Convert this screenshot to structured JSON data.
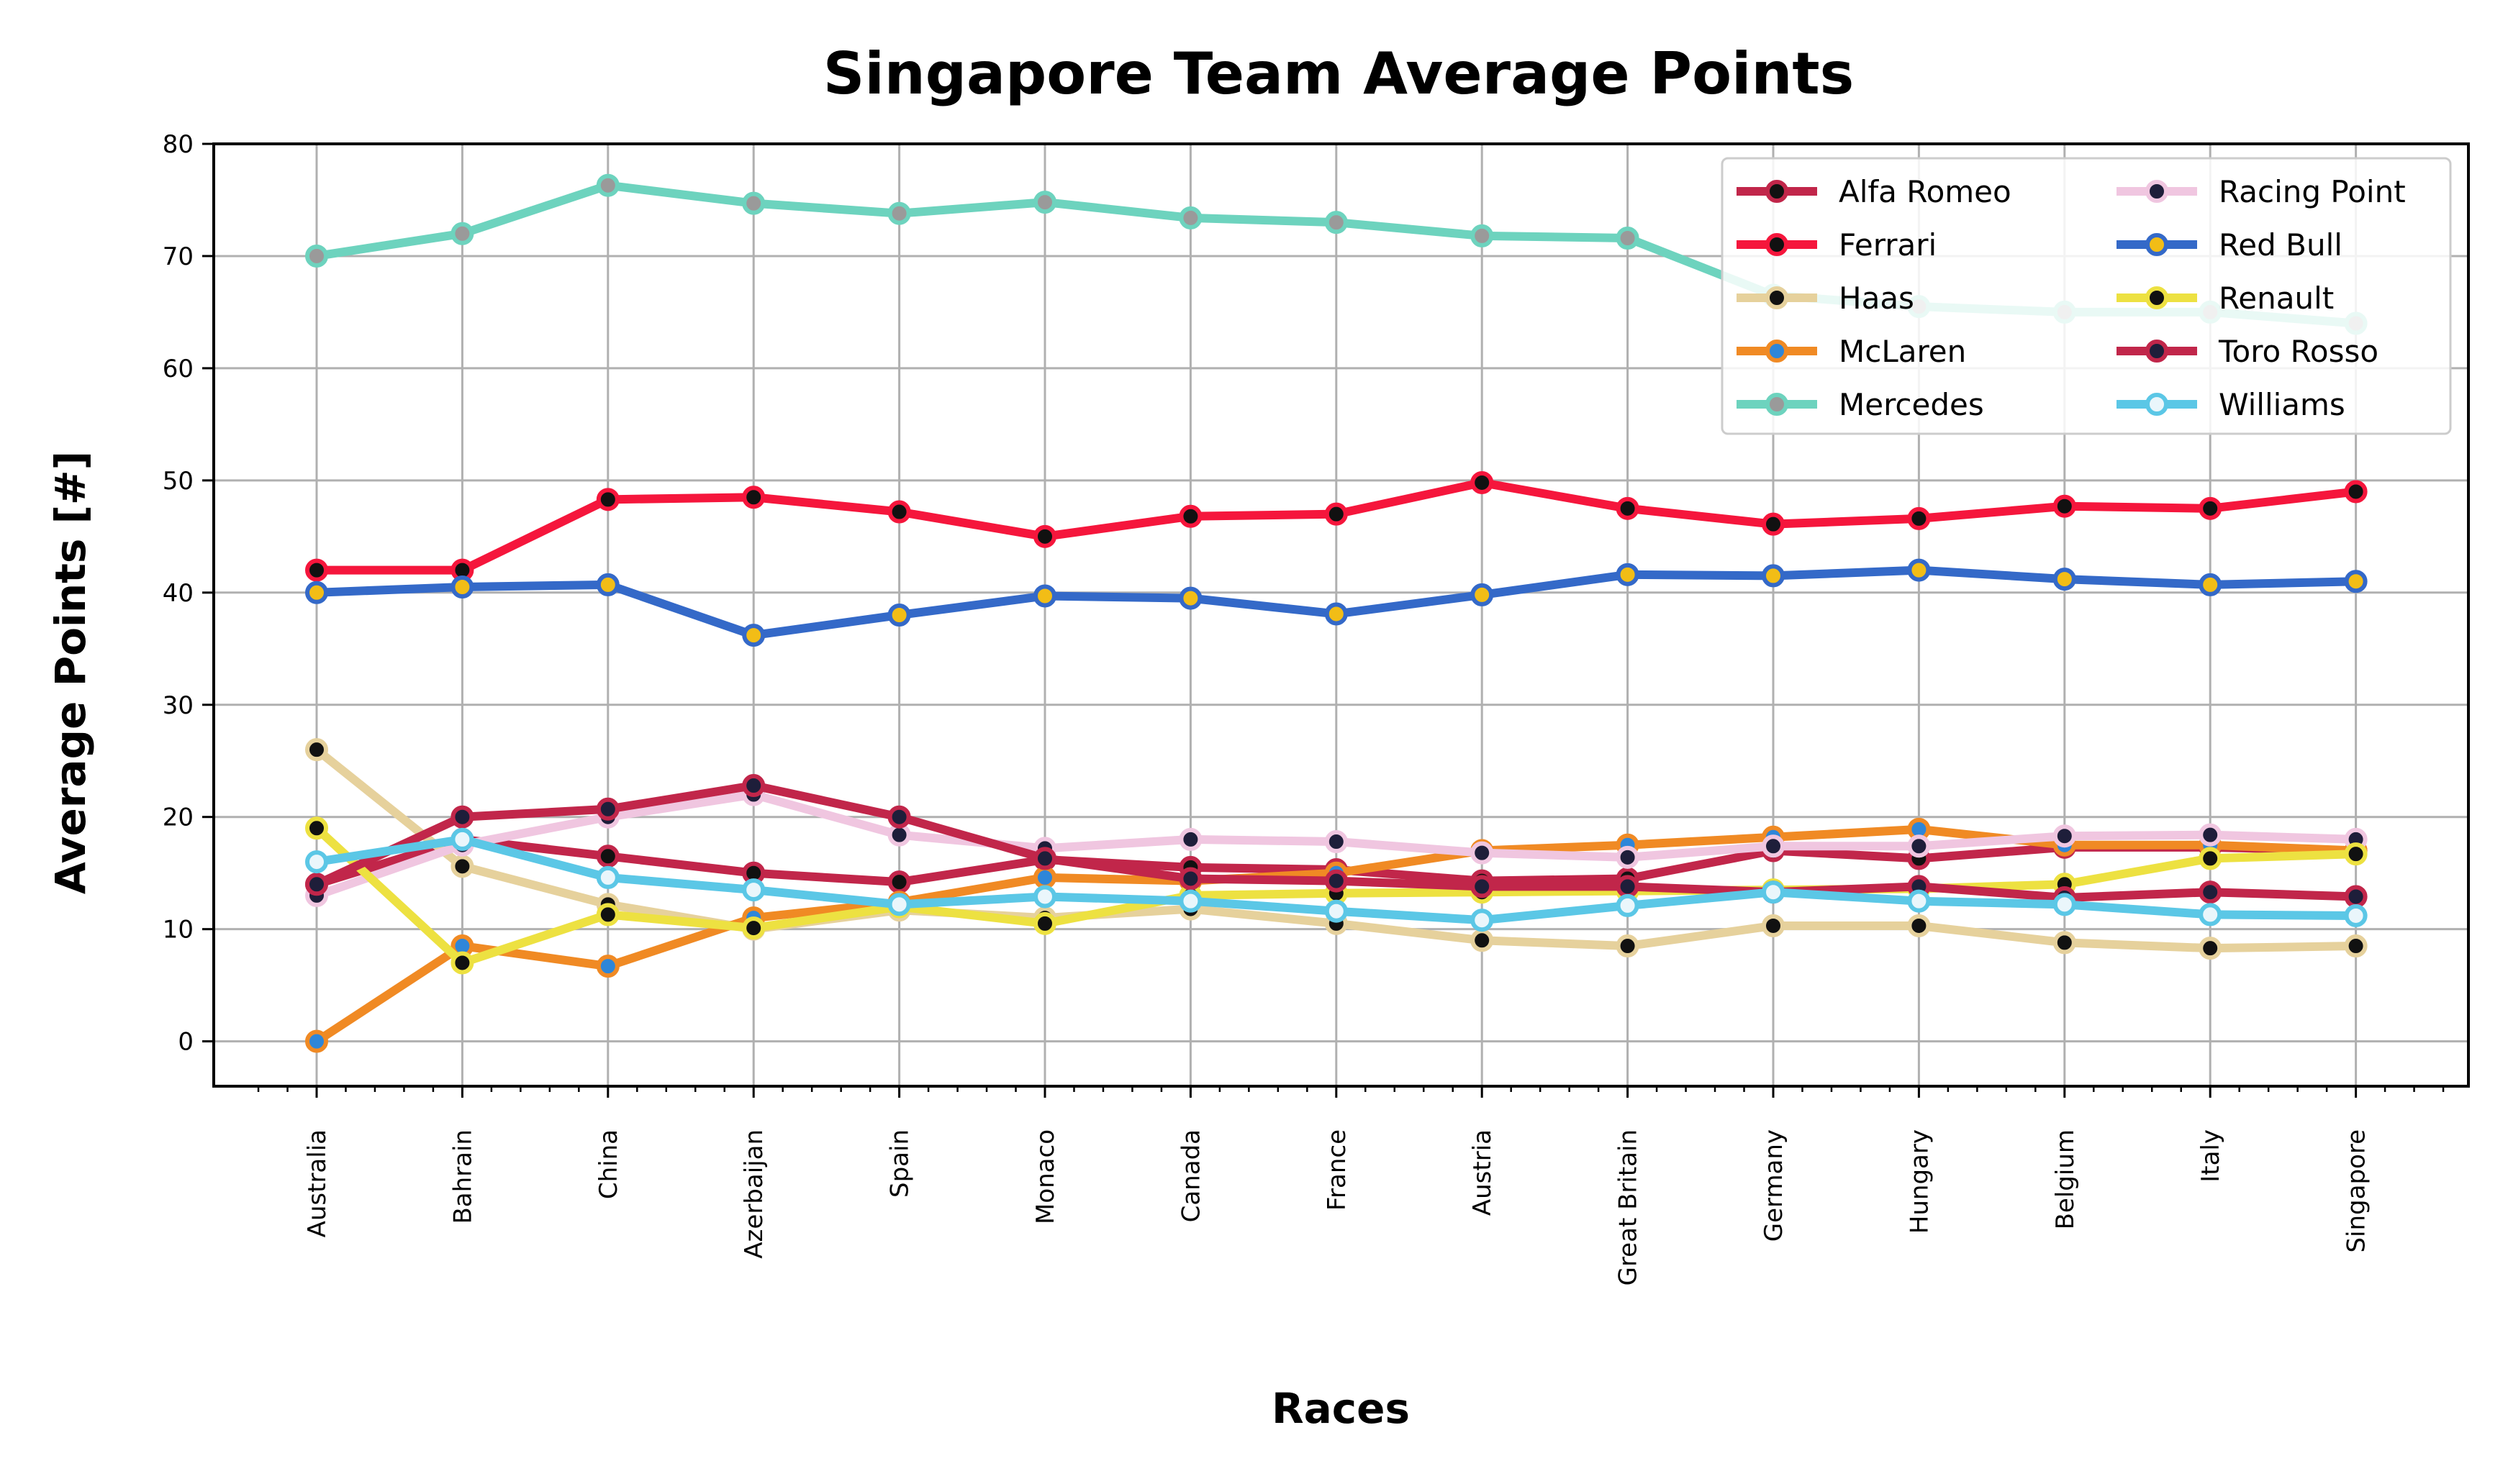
{
  "chart_data": {
    "type": "line",
    "title": "Singapore Team Average Points",
    "xlabel": "Races",
    "ylabel": "Average Points [#]",
    "ylim": [
      -4,
      80
    ],
    "yticks": [
      0,
      10,
      20,
      30,
      40,
      50,
      60,
      70,
      80
    ],
    "grid": true,
    "legend_position": "top-right",
    "categories": [
      "Australia",
      "Bahrain",
      "China",
      "Azerbaijan",
      "Spain",
      "Monaco",
      "Canada",
      "France",
      "Austria",
      "Great Britain",
      "Germany",
      "Hungary",
      "Belgium",
      "Italy",
      "Singapore"
    ],
    "series": [
      {
        "name": "Alfa Romeo",
        "color": "#c1264a",
        "marker": "#111111",
        "values": [
          14,
          18,
          16.5,
          15,
          14.2,
          16.2,
          15.5,
          15.3,
          14.3,
          14.5,
          17,
          16.3,
          17.3,
          17.3,
          17
        ]
      },
      {
        "name": "Ferrari",
        "color": "#f5163c",
        "marker": "#111111",
        "values": [
          42,
          42,
          48.3,
          48.5,
          47.2,
          45,
          46.8,
          47,
          49.8,
          47.5,
          46.1,
          46.6,
          47.7,
          47.5,
          49
        ]
      },
      {
        "name": "Haas",
        "color": "#e6d19c",
        "marker": "#111111",
        "values": [
          26,
          15.6,
          12.2,
          10,
          11.7,
          11,
          11.8,
          10.5,
          9,
          8.5,
          10.3,
          10.3,
          8.8,
          8.3,
          8.5
        ]
      },
      {
        "name": "McLaren",
        "color": "#f08a24",
        "marker": "#2e86d9",
        "values": [
          0,
          8.5,
          6.7,
          11,
          12.4,
          14.6,
          14.3,
          15,
          17,
          17.5,
          18.2,
          18.9,
          17.5,
          17.5,
          17
        ]
      },
      {
        "name": "Mercedes",
        "color": "#6dd3be",
        "marker": "#9a9a9a",
        "values": [
          70,
          72,
          76.3,
          74.7,
          73.8,
          74.8,
          73.4,
          73,
          71.8,
          71.6,
          66.5,
          65.5,
          65,
          65,
          64
        ]
      },
      {
        "name": "Racing Point",
        "color": "#f0c6e0",
        "marker": "#1e1e3a",
        "values": [
          13,
          17.5,
          20,
          22,
          18.4,
          17.2,
          18,
          17.8,
          16.8,
          16.4,
          17.4,
          17.4,
          18.3,
          18.4,
          18
        ]
      },
      {
        "name": "Red Bull",
        "color": "#3469c8",
        "marker": "#f2bd16",
        "values": [
          40,
          40.5,
          40.7,
          36.2,
          38,
          39.7,
          39.5,
          38.1,
          39.8,
          41.6,
          41.5,
          42,
          41.2,
          40.7,
          41
        ]
      },
      {
        "name": "Renault",
        "color": "#ede141",
        "marker": "#111111",
        "values": [
          19,
          7,
          11.3,
          10.1,
          12,
          10.5,
          13,
          13.2,
          13.3,
          13.4,
          13.5,
          13.6,
          14,
          16.3,
          16.7
        ]
      },
      {
        "name": "Toro Rosso",
        "color": "#c1264a",
        "marker": "#1e1e3a",
        "values": [
          14,
          20,
          20.7,
          22.8,
          20,
          16.3,
          14.5,
          14.3,
          13.8,
          13.8,
          13.3,
          13.8,
          12.8,
          13.3,
          12.9
        ]
      },
      {
        "name": "Williams",
        "color": "#5bc7e6",
        "marker": "#eaf6fb",
        "values": [
          16,
          18,
          14.6,
          13.5,
          12.2,
          12.9,
          12.5,
          11.6,
          10.8,
          12.1,
          13.3,
          12.5,
          12.2,
          11.3,
          11.2
        ]
      }
    ]
  }
}
